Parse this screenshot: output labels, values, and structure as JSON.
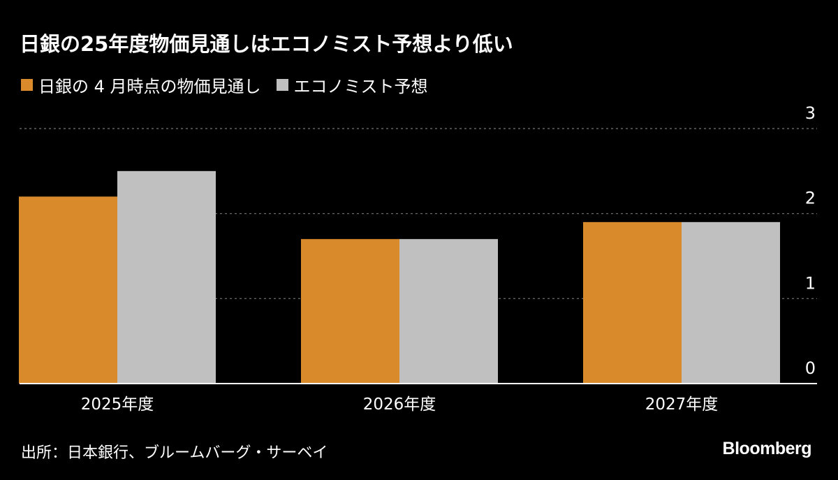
{
  "title": "日銀の25年度物価見通しはエコノミスト予想より低い",
  "source": "出所：日本銀行、ブルームバーグ・サーベイ",
  "brand": "Bloomberg",
  "colors": {
    "boj": "#d98a2a",
    "economists": "#c0c0c0",
    "background": "#000000",
    "grid": "#777777"
  },
  "legend": [
    {
      "label": "日銀の 4 月時点の物価見通し",
      "color": "#d98a2a"
    },
    {
      "label": "エコノミスト予想",
      "color": "#c0c0c0"
    }
  ],
  "chart_data": {
    "type": "bar",
    "categories": [
      "2025年度",
      "2026年度",
      "2027年度"
    ],
    "series": [
      {
        "name": "日銀の 4 月時点の物価見通し",
        "values": [
          2.2,
          1.7,
          1.9
        ]
      },
      {
        "name": "エコノミスト予想",
        "values": [
          2.5,
          1.7,
          1.9
        ]
      }
    ],
    "ylim": [
      0,
      3
    ],
    "yticks": [
      0,
      1,
      2,
      3
    ],
    "ytick_labels": [
      "0",
      "1",
      "2",
      "3"
    ],
    "grid": true,
    "legend_position": "top-left",
    "yaxis_position": "right"
  }
}
